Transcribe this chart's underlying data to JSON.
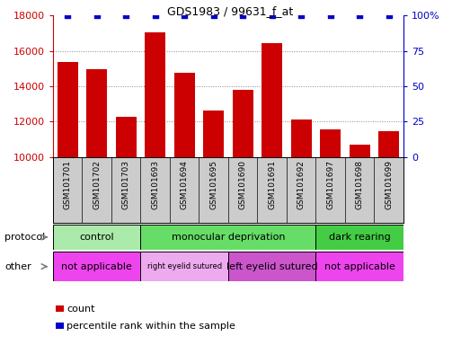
{
  "title": "GDS1983 / 99631_f_at",
  "samples": [
    "GSM101701",
    "GSM101702",
    "GSM101703",
    "GSM101693",
    "GSM101694",
    "GSM101695",
    "GSM101690",
    "GSM101691",
    "GSM101692",
    "GSM101697",
    "GSM101698",
    "GSM101699"
  ],
  "counts": [
    15350,
    14950,
    12250,
    17050,
    14750,
    12650,
    13800,
    16450,
    12100,
    11550,
    10700,
    11450
  ],
  "bar_color": "#cc0000",
  "dot_color": "#0000cc",
  "ylim_left": [
    10000,
    18000
  ],
  "ylim_right": [
    0,
    100
  ],
  "yticks_left": [
    10000,
    12000,
    14000,
    16000,
    18000
  ],
  "yticks_right": [
    0,
    25,
    50,
    75,
    100
  ],
  "protocol_groups": [
    {
      "label": "control",
      "start": 0,
      "end": 3,
      "color": "#aaeaaa"
    },
    {
      "label": "monocular deprivation",
      "start": 3,
      "end": 9,
      "color": "#66dd66"
    },
    {
      "label": "dark rearing",
      "start": 9,
      "end": 12,
      "color": "#44cc44"
    }
  ],
  "other_groups": [
    {
      "label": "not applicable",
      "start": 0,
      "end": 3,
      "color": "#ee44ee"
    },
    {
      "label": "right eyelid sutured",
      "start": 3,
      "end": 6,
      "color": "#eeaaee"
    },
    {
      "label": "left eyelid sutured",
      "start": 6,
      "end": 9,
      "color": "#cc55cc"
    },
    {
      "label": "not applicable",
      "start": 9,
      "end": 12,
      "color": "#ee44ee"
    }
  ],
  "protocol_row_label": "protocol",
  "other_row_label": "other",
  "legend_count_label": "count",
  "legend_pct_label": "percentile rank within the sample",
  "grid_color": "#888888",
  "left_axis_color": "#cc0000",
  "right_axis_color": "#0000cc",
  "label_box_color": "#cccccc"
}
